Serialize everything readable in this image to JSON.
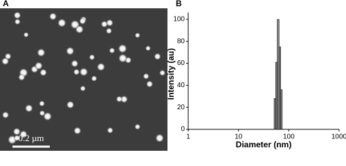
{
  "panel_a": {
    "label": "A",
    "scale_bar": "0.2 µm"
  },
  "chart_data": {
    "type": "histogram",
    "panel_label": "B",
    "x_label": "Diameter (nm)",
    "y_label": "Intensity (au)",
    "bins": [
      51,
      55,
      59,
      64,
      69,
      74
    ],
    "values": [
      28,
      61,
      100,
      75,
      36
    ],
    "color": "#888888",
    "xscale": "log",
    "xlim": [
      1,
      1000
    ],
    "xticks": [
      1,
      10,
      100,
      1000
    ],
    "ylim": [
      0,
      100
    ],
    "yticks": [
      0,
      20,
      40,
      60,
      80,
      100
    ]
  }
}
